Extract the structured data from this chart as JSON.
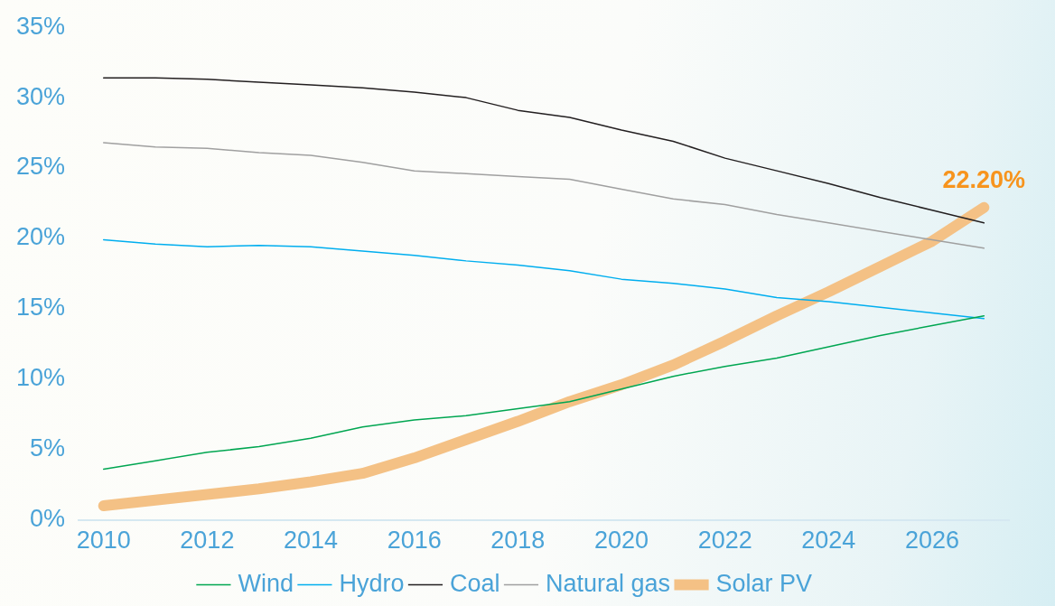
{
  "chart_data": {
    "type": "line",
    "categories": [
      "2010",
      null,
      "2012",
      null,
      "2014",
      null,
      "2016",
      null,
      "2018",
      null,
      "2020",
      null,
      "2022",
      null,
      "2024",
      null,
      "2026",
      null
    ],
    "ylim": [
      0,
      35
    ],
    "yticks": [
      {
        "value": 0,
        "label": "0%"
      },
      {
        "value": 5,
        "label": "5%"
      },
      {
        "value": 10,
        "label": "10%"
      },
      {
        "value": 15,
        "label": "15%"
      },
      {
        "value": 20,
        "label": "20%"
      },
      {
        "value": 25,
        "label": "25%"
      },
      {
        "value": 30,
        "label": "30%"
      },
      {
        "value": 35,
        "label": "35%"
      }
    ],
    "grid": false,
    "legend": "bottom",
    "marker": "none",
    "line_style": "solid",
    "series": [
      {
        "name": "Wind",
        "color": "#00a651",
        "values": [
          3.6,
          4.2,
          4.8,
          5.2,
          5.8,
          6.6,
          7.1,
          7.4,
          7.9,
          8.4,
          9.3,
          10.2,
          10.9,
          11.5,
          12.3,
          13.1,
          13.8,
          14.5
        ]
      },
      {
        "name": "Hydro",
        "color": "#00aeef",
        "values": [
          19.9,
          19.6,
          19.4,
          19.5,
          19.4,
          19.1,
          18.8,
          18.4,
          18.1,
          17.7,
          17.1,
          16.8,
          16.4,
          15.8,
          15.5,
          15.1,
          14.7,
          14.3
        ]
      },
      {
        "name": "Coal",
        "color": "#231f20",
        "values": [
          31.4,
          31.4,
          31.3,
          31.1,
          30.9,
          30.7,
          30.4,
          30.0,
          29.1,
          28.6,
          27.7,
          26.9,
          25.7,
          24.8,
          23.9,
          22.9,
          22.0,
          21.1
        ]
      },
      {
        "name": "Natural gas",
        "color": "#a0a0a0",
        "values": [
          26.8,
          26.5,
          26.4,
          26.1,
          25.9,
          25.4,
          24.8,
          24.6,
          24.4,
          24.2,
          23.5,
          22.8,
          22.4,
          21.7,
          21.1,
          20.5,
          19.9,
          19.3
        ]
      },
      {
        "name": "Solar PV",
        "color": "#f4c185",
        "values": [
          1.0,
          1.4,
          1.8,
          2.2,
          2.7,
          3.3,
          4.4,
          5.7,
          7.0,
          8.4,
          9.6,
          11.0,
          12.7,
          14.5,
          16.2,
          18.0,
          19.8,
          22.2
        ],
        "value_labels": [
          null,
          null,
          null,
          null,
          null,
          null,
          null,
          null,
          null,
          null,
          null,
          null,
          null,
          null,
          null,
          null,
          null,
          "22.20%"
        ]
      }
    ]
  }
}
